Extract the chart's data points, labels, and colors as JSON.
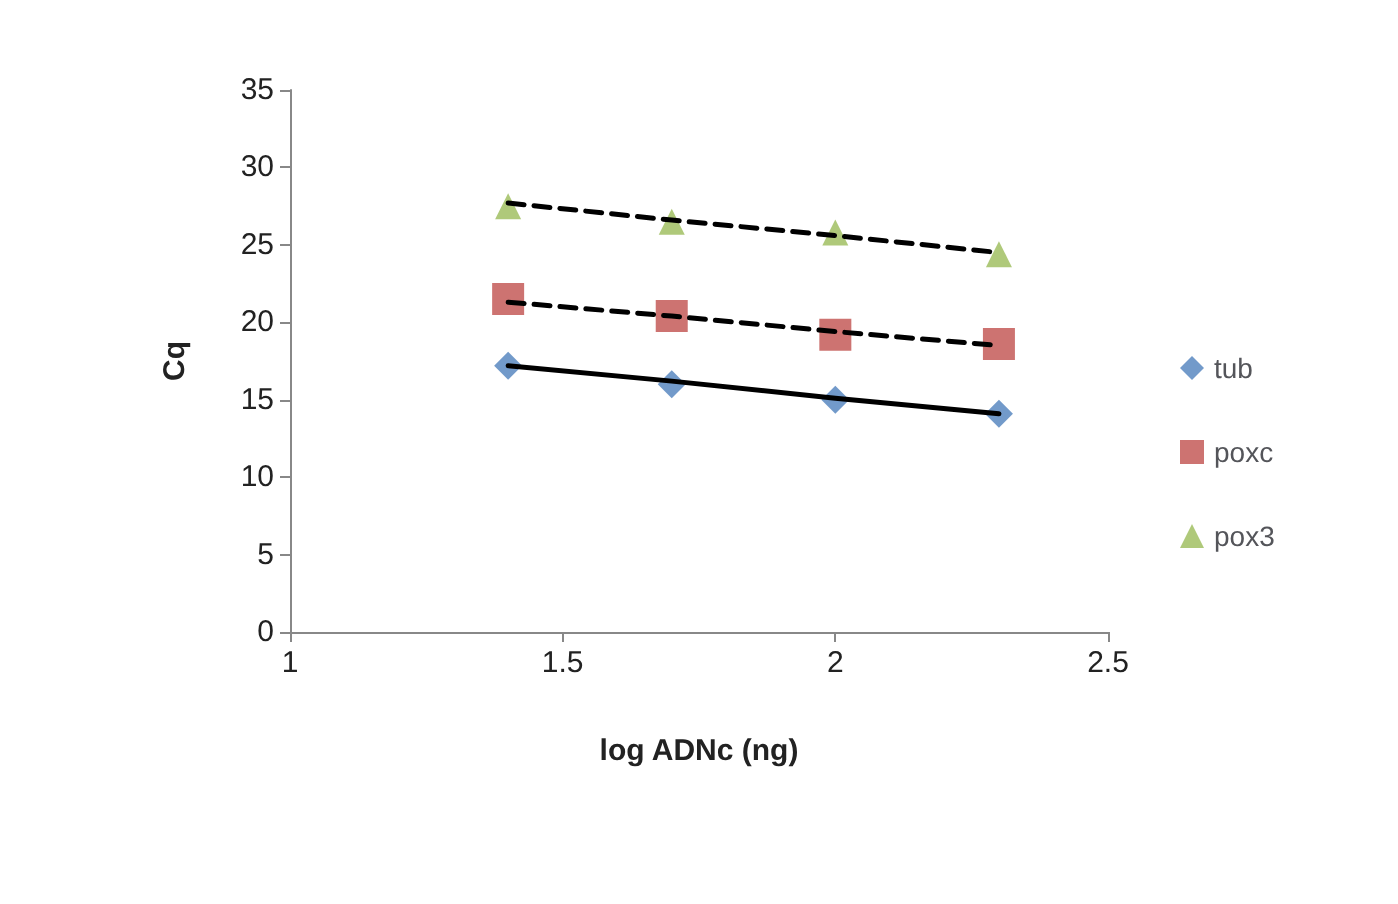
{
  "chart_data": {
    "type": "scatter",
    "xlabel": "log ADNc (ng)",
    "ylabel": "Cq",
    "x": [
      1.4,
      1.7,
      2.0,
      2.3
    ],
    "series": [
      {
        "name": "tub",
        "color": "#4f81bd",
        "marker": "diamond",
        "values": [
          17.2,
          16.0,
          15.0,
          14.1
        ]
      },
      {
        "name": "poxc",
        "color": "#c0504d",
        "marker": "square",
        "values": [
          21.5,
          20.4,
          19.2,
          18.6
        ]
      },
      {
        "name": "pox3",
        "color": "#9bbb59",
        "marker": "triangle",
        "values": [
          27.5,
          26.5,
          25.8,
          24.4
        ]
      },
      {
        "type": "line",
        "color": "#000000",
        "line_style": "solid",
        "marker": "none",
        "values": [
          17.2,
          16.2,
          15.1,
          14.1
        ]
      },
      {
        "type": "line",
        "color": "#000000",
        "line_style": "dashed",
        "marker": "none",
        "values": [
          21.3,
          20.4,
          19.4,
          18.5
        ]
      },
      {
        "type": "line",
        "color": "#000000",
        "line_style": "dashed",
        "marker": "none",
        "values": [
          27.7,
          26.6,
          25.6,
          24.5
        ]
      }
    ],
    "xlim": [
      1,
      2.5
    ],
    "xticks": [
      1,
      1.5,
      2,
      2.5
    ],
    "ylim": [
      0,
      35
    ],
    "yticks": [
      0,
      5,
      10,
      15,
      20,
      25,
      30,
      35
    ],
    "grid": false,
    "legend": "right"
  }
}
